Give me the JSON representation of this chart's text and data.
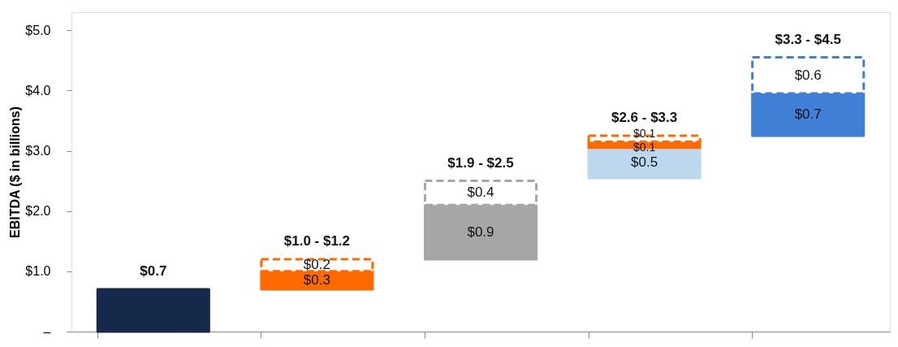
{
  "chart_data": {
    "type": "bar",
    "ylabel": "EBITDA ($ in billions)",
    "categories": [
      null,
      null,
      null,
      null,
      null
    ],
    "series": [
      {
        "colors": [
          "#16294a",
          "#ff6a00",
          "#a6a6a6",
          "#bdd7ee",
          "#3f7fd6"
        ],
        "base": [
          0,
          0.7,
          1.2,
          2.55,
          3.25
        ],
        "values": [
          0.7,
          0.3,
          0.9,
          0.5,
          0.7
        ],
        "value_labels": [
          null,
          "$0.3",
          "$0.9",
          "$0.5",
          "$0.7"
        ],
        "line_style": "solid"
      },
      {
        "color": "#ff6a00",
        "base": [
          null,
          null,
          null,
          3.05,
          null
        ],
        "values": [
          null,
          null,
          null,
          0.1,
          null
        ],
        "value_labels": [
          null,
          null,
          null,
          "$0.1",
          null
        ],
        "line_style": "solid"
      },
      {
        "colors": [
          "#ff6a00",
          "#ff6a00",
          "#a6a6a6",
          "#ff6a00",
          "#3f7fd6"
        ],
        "base": [
          null,
          1.0,
          2.1,
          3.15,
          3.95
        ],
        "values": [
          null,
          0.2,
          0.4,
          0.1,
          0.6
        ],
        "value_labels": [
          null,
          "$0.2",
          "$0.4",
          "$0.1",
          "$0.6"
        ],
        "line_style": "dashed"
      }
    ],
    "totals": [
      "$0.7",
      "$1.0 - $1.2",
      "$1.9 - $2.5",
      "$2.6 - $3.3",
      "$3.3 - $4.5"
    ],
    "ylim": [
      0,
      5.3
    ],
    "yticks": [
      {
        "value": 0,
        "label": "–"
      },
      {
        "value": 1,
        "label": "$1.0"
      },
      {
        "value": 2,
        "label": "$2.0"
      },
      {
        "value": 3,
        "label": "$3.0"
      },
      {
        "value": 4,
        "label": "$4.0"
      },
      {
        "value": 5,
        "label": "$5.0"
      }
    ],
    "tick_labels": "y"
  }
}
